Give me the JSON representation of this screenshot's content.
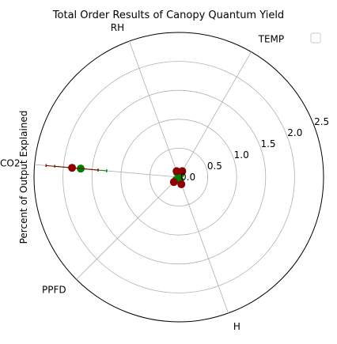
{
  "chart_data": {
    "type": "polar-scatter",
    "title": "Total Order Results of Canopy Quantum Yield",
    "ylabel": "Percent of Output Explained",
    "xlabel": "",
    "axes": [
      "RH",
      "TEMP",
      "H",
      "PPFD",
      "CO2"
    ],
    "axis_angles_deg": [
      110,
      60,
      290,
      225,
      175
    ],
    "rlim": [
      0,
      2.5
    ],
    "r_ticks": [
      0.0,
      0.5,
      1.0,
      1.5,
      2.0,
      2.5
    ],
    "r_tick_labels": [
      "0.0",
      "0.5",
      "1.0",
      "1.5",
      "2.0",
      "2.5"
    ],
    "grid": true,
    "legend": {
      "placement": "top-right",
      "entries": []
    },
    "series": [
      {
        "color": "#008000",
        "points": [
          {
            "axis": "RH",
            "value": 0.08,
            "err": 0.02
          },
          {
            "axis": "TEMP",
            "value": 0.06,
            "err": 0.02
          },
          {
            "axis": "H",
            "value": 0.06,
            "err": 0.02
          },
          {
            "axis": "PPFD",
            "value": 0.07,
            "err": 0.02
          },
          {
            "axis": "CO2",
            "value": 1.7,
            "err": 0.45
          }
        ]
      },
      {
        "color": "#8b0000",
        "points": [
          {
            "axis": "RH",
            "value": 0.11,
            "err": 0.02
          },
          {
            "axis": "TEMP",
            "value": 0.12,
            "err": 0.02
          },
          {
            "axis": "H",
            "value": 0.13,
            "err": 0.02
          },
          {
            "axis": "PPFD",
            "value": 0.12,
            "err": 0.02
          },
          {
            "axis": "CO2",
            "value": 1.85,
            "err": 0.45
          }
        ]
      }
    ]
  }
}
